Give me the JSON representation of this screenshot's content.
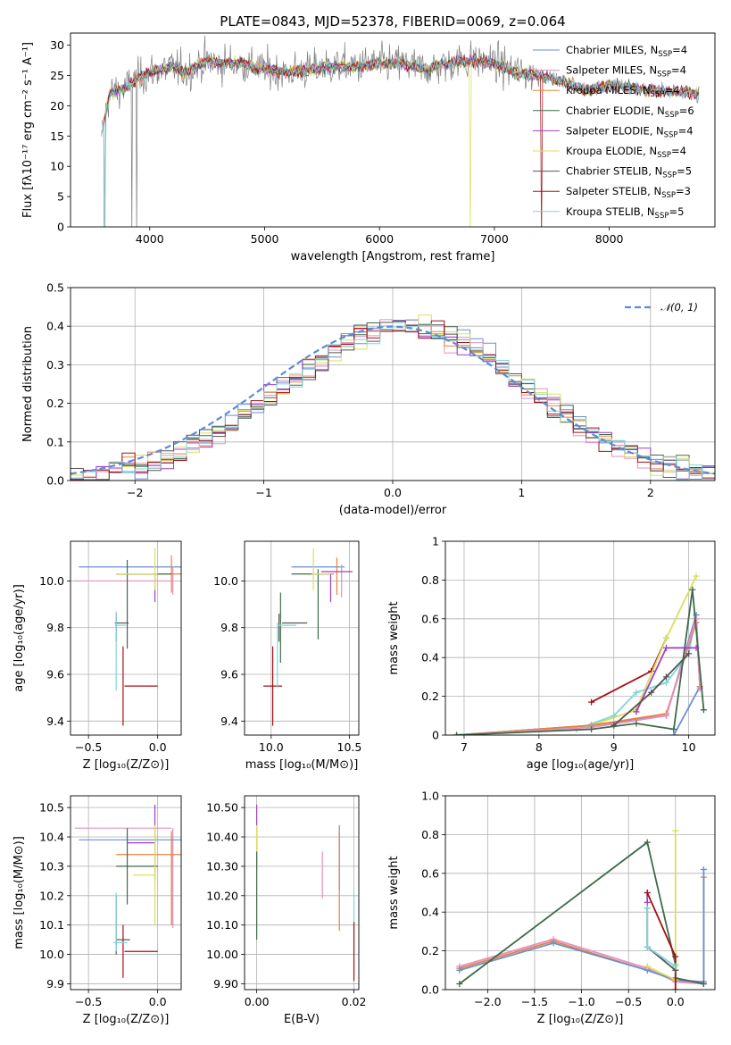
{
  "figure": {
    "title": "PLATE=0843, MJD=52378, FIBERID=0069, z=0.064"
  },
  "colors": {
    "Chabrier MILES": "#6a8fd6",
    "Salpeter MILES": "#e68fbf",
    "Kroupa MILES": "#e8823a",
    "Chabrier ELODIE": "#3d6b4a",
    "Salpeter ELODIE": "#a23cc9",
    "Kroupa ELODIE": "#d8e05a",
    "Chabrier STELIB": "#555555",
    "Salpeter STELIB": "#a50f15",
    "Kroupa STELIB": "#7fd6d6",
    "data": "#7f7f7f",
    "gaussian": "#5b8bd6"
  },
  "chart_data": [
    {
      "id": "spectrum",
      "type": "line",
      "title": "PLATE=0843, MJD=52378, FIBERID=0069, z=0.064",
      "xlabel": "wavelength [Angstrom, rest frame]",
      "ylabel": "Flux [fλ10⁻¹⁷ erg cm⁻² s⁻¹ A⁻¹]",
      "xlim": [
        3310,
        8920
      ],
      "ylim": [
        0,
        32
      ],
      "xticks": [
        4000,
        5000,
        6000,
        7000,
        8000
      ],
      "yticks": [
        0,
        5,
        10,
        15,
        20,
        25,
        30
      ],
      "legend_position": "top-right",
      "legend": [
        "Chabrier MILES, N_SSP=4",
        "Salpeter MILES, N_SSP=4",
        "Kroupa MILES, N_SSP=4",
        "Chabrier ELODIE, N_SSP=6",
        "Salpeter ELODIE, N_SSP=4",
        "Kroupa ELODIE, N_SSP=4",
        "Chabrier STELIB, N_SSP=5",
        "Salpeter STELIB, N_SSP=3",
        "Kroupa STELIB, N_SSP=5"
      ],
      "continuum": {
        "x": [
          3580,
          3650,
          3800,
          3900,
          4000,
          4100,
          4200,
          4300,
          4400,
          4500,
          4600,
          4800,
          5000,
          5200,
          5400,
          5600,
          5800,
          6000,
          6200,
          6400,
          6600,
          6800,
          7000,
          7200,
          7400,
          7600,
          7800,
          8000,
          8200,
          8400,
          8800
        ],
        "y": [
          15.5,
          22,
          23,
          24.5,
          25.5,
          26,
          26.5,
          25.5,
          26.5,
          27.5,
          27,
          27,
          26,
          25.5,
          26,
          26.5,
          26.5,
          27,
          27,
          26,
          27,
          27.5,
          27,
          25.5,
          25,
          24,
          22.5,
          23.5,
          23,
          22.5,
          22
        ]
      }
    },
    {
      "id": "residuals",
      "type": "line",
      "xlabel": "(data-model)/error",
      "ylabel": "Normed distribution",
      "xlim": [
        -2.5,
        2.5
      ],
      "ylim": [
        0,
        0.5
      ],
      "xticks": [
        -2,
        -1,
        0,
        1,
        2
      ],
      "yticks": [
        0.0,
        0.1,
        0.2,
        0.3,
        0.4,
        0.5
      ],
      "legend_position": "top-right",
      "legend": [
        "𝒩(0, 1)"
      ],
      "bin_width": 0.1
    },
    {
      "id": "age_vs_Z",
      "type": "scatter",
      "xlabel": "Z [log₁₀(Z/Z⊙)]",
      "ylabel": "age  [log₁₀(age/yr)]",
      "xlim": [
        -0.63,
        0.17
      ],
      "ylim": [
        9.34,
        10.17
      ],
      "xticks": [
        -0.5,
        0.0
      ],
      "yticks": [
        9.4,
        9.6,
        9.8,
        10.0
      ],
      "points": [
        {
          "model": "Chabrier MILES",
          "x": -0.2,
          "xerr": 0.37,
          "y": 10.06,
          "yerr": 0
        },
        {
          "model": "Salpeter MILES",
          "x": 0.11,
          "xerr": 0,
          "y": 10.0,
          "yerr": 0.06
        },
        {
          "model": "Salpeter MILES",
          "x": -0.25,
          "xerr": 0.35,
          "y": 10.0,
          "yerr": 0
        },
        {
          "model": "Kroupa MILES",
          "x": -0.05,
          "xerr": 0.25,
          "y": 10.03,
          "yerr": 0
        },
        {
          "model": "Kroupa MILES",
          "x": 0.1,
          "xerr": 0,
          "y": 10.03,
          "yerr": 0.08
        },
        {
          "model": "Chabrier ELODIE",
          "x": -0.22,
          "xerr": 0,
          "y": 9.9,
          "yerr": 0.19
        },
        {
          "model": "Chabrier ELODIE",
          "x": -0.1,
          "xerr": 0.2,
          "y": 10.03,
          "yerr": 0
        },
        {
          "model": "Salpeter ELODIE",
          "x": -0.02,
          "xerr": 0,
          "y": 9.97,
          "yerr": 0.06
        },
        {
          "model": "Kroupa ELODIE",
          "x": -0.02,
          "xerr": 0,
          "y": 10.05,
          "yerr": 0.09
        },
        {
          "model": "Kroupa ELODIE",
          "x": -0.15,
          "xerr": 0.15,
          "y": 10.03,
          "yerr": 0
        },
        {
          "model": "Chabrier STELIB",
          "x": -0.26,
          "xerr": 0.05,
          "y": 9.82,
          "yerr": 0
        },
        {
          "model": "Chabrier STELIB",
          "x": -0.3,
          "xerr": 0,
          "y": 9.8,
          "yerr": 0.06
        },
        {
          "model": "Salpeter STELIB",
          "x": -0.25,
          "xerr": 0,
          "y": 9.55,
          "yerr": 0.17
        },
        {
          "model": "Salpeter STELIB",
          "x": -0.12,
          "xerr": 0.12,
          "y": 9.55,
          "yerr": 0
        },
        {
          "model": "Kroupa STELIB",
          "x": -0.27,
          "xerr": 0.04,
          "y": 9.81,
          "yerr": 0
        },
        {
          "model": "Kroupa STELIB",
          "x": -0.3,
          "xerr": 0,
          "y": 9.7,
          "yerr": 0.17
        }
      ]
    },
    {
      "id": "age_vs_mass",
      "type": "scatter",
      "xlabel": "mass [log₁₀(M/M⊙)]",
      "ylabel": "",
      "xlim": [
        9.83,
        10.56
      ],
      "ylim": [
        9.34,
        10.17
      ],
      "xticks": [
        10.0,
        10.5
      ],
      "yticks": [
        9.4,
        9.6,
        9.8,
        10.0
      ],
      "points": [
        {
          "model": "Chabrier MILES",
          "x": 10.3,
          "xerr": 0.17,
          "y": 10.06,
          "yerr": 0
        },
        {
          "model": "Salpeter MILES",
          "x": 10.45,
          "xerr": 0,
          "y": 10.0,
          "yerr": 0.07
        },
        {
          "model": "Kroupa MILES",
          "x": 10.35,
          "xerr": 0.05,
          "y": 10.03,
          "yerr": 0
        },
        {
          "model": "Kroupa MILES",
          "x": 10.42,
          "xerr": 0,
          "y": 10.02,
          "yerr": 0.08
        },
        {
          "model": "Chabrier ELODIE",
          "x": 10.25,
          "xerr": 0.12,
          "y": 10.03,
          "yerr": 0
        },
        {
          "model": "Chabrier ELODIE",
          "x": 10.3,
          "xerr": 0,
          "y": 9.9,
          "yerr": 0.15
        },
        {
          "model": "Salpeter ELODIE",
          "x": 10.42,
          "xerr": 0.1,
          "y": 10.04,
          "yerr": 0
        },
        {
          "model": "Salpeter ELODIE",
          "x": 10.38,
          "xerr": 0,
          "y": 9.97,
          "yerr": 0.06
        },
        {
          "model": "Kroupa ELODIE",
          "x": 10.27,
          "xerr": 0,
          "y": 10.05,
          "yerr": 0.09
        },
        {
          "model": "Kroupa ELODIE",
          "x": 10.32,
          "xerr": 0.06,
          "y": 10.03,
          "yerr": 0
        },
        {
          "model": "Chabrier STELIB",
          "x": 10.15,
          "xerr": 0.08,
          "y": 9.82,
          "yerr": 0
        },
        {
          "model": "Chabrier STELIB",
          "x": 10.05,
          "xerr": 0,
          "y": 9.8,
          "yerr": 0.06
        },
        {
          "model": "Chabrier ELODIE",
          "x": 10.06,
          "xerr": 0,
          "y": 9.8,
          "yerr": 0.15
        },
        {
          "model": "Salpeter STELIB",
          "x": 10.01,
          "xerr": 0,
          "y": 9.55,
          "yerr": 0.17
        },
        {
          "model": "Salpeter STELIB",
          "x": 10.01,
          "xerr": 0.06,
          "y": 9.55,
          "yerr": 0
        },
        {
          "model": "Kroupa STELIB",
          "x": 10.1,
          "xerr": 0.06,
          "y": 9.81,
          "yerr": 0
        },
        {
          "model": "Kroupa STELIB",
          "x": 10.04,
          "xerr": 0,
          "y": 9.68,
          "yerr": 0.14
        }
      ]
    },
    {
      "id": "massweight_vs_age",
      "type": "line",
      "xlabel": "age  [log₁₀(age/yr)]",
      "ylabel": "mass weight",
      "xlim": [
        6.75,
        10.35
      ],
      "ylim": [
        0,
        1
      ],
      "xticks": [
        7,
        8,
        9,
        10
      ],
      "yticks": [
        0.0,
        0.2,
        0.4,
        0.6,
        0.8,
        1.0
      ],
      "series": [
        {
          "model": "Salpeter STELIB",
          "x": [
            8.7,
            9.5,
            9.7
          ],
          "y": [
            0.17,
            0.33,
            0.5
          ]
        },
        {
          "model": "Kroupa ELODIE",
          "x": [
            6.9,
            8.7,
            9.3,
            9.7,
            10.1
          ],
          "y": [
            0.0,
            0.05,
            0.13,
            0.5,
            0.82
          ]
        },
        {
          "model": "Kroupa STELIB",
          "x": [
            8.5,
            9.0,
            9.3,
            9.7,
            10.0,
            10.1
          ],
          "y": [
            0.03,
            0.1,
            0.22,
            0.27,
            0.42,
            0.62
          ]
        },
        {
          "model": "Chabrier MILES",
          "x": [
            6.9,
            8.7,
            9.7,
            10.1,
            10.15,
            9.8
          ],
          "y": [
            0.0,
            0.05,
            0.1,
            0.62,
            0.25,
            0.0
          ]
        },
        {
          "model": "Kroupa MILES",
          "x": [
            6.9,
            8.7,
            9.7,
            10.1,
            10.15
          ],
          "y": [
            0.0,
            0.05,
            0.11,
            0.58,
            0.25
          ]
        },
        {
          "model": "Salpeter MILES",
          "x": [
            6.9,
            8.7,
            9.7,
            10.1,
            10.15
          ],
          "y": [
            0.0,
            0.04,
            0.1,
            0.6,
            0.24
          ]
        },
        {
          "model": "Chabrier ELODIE",
          "x": [
            6.9,
            8.7,
            9.3,
            9.8,
            10.05,
            10.2
          ],
          "y": [
            0.0,
            0.03,
            0.06,
            0.03,
            0.75,
            0.13
          ]
        },
        {
          "model": "Salpeter ELODIE",
          "x": [
            9.3,
            9.7,
            10.1
          ],
          "y": [
            0.12,
            0.45,
            0.45
          ]
        },
        {
          "model": "Chabrier STELIB",
          "x": [
            9.0,
            9.5,
            9.7,
            10.0
          ],
          "y": [
            0.05,
            0.22,
            0.3,
            0.42
          ]
        }
      ]
    },
    {
      "id": "mass_vs_Z",
      "type": "scatter",
      "xlabel": "Z [log₁₀(Z/Z⊙)]",
      "ylabel": "mass [log₁₀(M/M⊙)]",
      "xlim": [
        -0.63,
        0.17
      ],
      "ylim": [
        9.88,
        10.54
      ],
      "xticks": [
        -0.5,
        0.0
      ],
      "yticks": [
        9.9,
        10.0,
        10.1,
        10.2,
        10.3,
        10.4,
        10.5
      ],
      "points": [
        {
          "model": "Salpeter MILES",
          "x": -0.25,
          "xerr": 0.35,
          "y": 10.43,
          "yerr": 0
        },
        {
          "model": "Salpeter MILES",
          "x": 0.11,
          "xerr": 0,
          "y": 10.26,
          "yerr": 0.17
        },
        {
          "model": "Chabrier MILES",
          "x": -0.2,
          "xerr": 0.37,
          "y": 10.39,
          "yerr": 0
        },
        {
          "model": "Chabrier MILES",
          "x": 0.1,
          "xerr": 0,
          "y": 10.25,
          "yerr": 0.15
        },
        {
          "model": "Kroupa MILES",
          "x": -0.05,
          "xerr": 0.25,
          "y": 10.34,
          "yerr": 0
        },
        {
          "model": "Kroupa MILES",
          "x": 0.1,
          "xerr": 0,
          "y": 10.26,
          "yerr": 0.16
        },
        {
          "model": "Chabrier ELODIE",
          "x": -0.22,
          "xerr": 0,
          "y": 10.3,
          "yerr": 0.13
        },
        {
          "model": "Chabrier ELODIE",
          "x": -0.15,
          "xerr": 0.15,
          "y": 10.3,
          "yerr": 0
        },
        {
          "model": "Salpeter ELODIE",
          "x": -0.02,
          "xerr": 0,
          "y": 10.38,
          "yerr": 0.13
        },
        {
          "model": "Salpeter ELODIE",
          "x": -0.12,
          "xerr": 0.1,
          "y": 10.38,
          "yerr": 0
        },
        {
          "model": "Kroupa ELODIE",
          "x": -0.02,
          "xerr": 0,
          "y": 10.27,
          "yerr": 0.17
        },
        {
          "model": "Kroupa ELODIE",
          "x": -0.1,
          "xerr": 0.08,
          "y": 10.27,
          "yerr": 0
        },
        {
          "model": "Chabrier STELIB",
          "x": -0.25,
          "xerr": 0.05,
          "y": 10.05,
          "yerr": 0
        },
        {
          "model": "Chabrier STELIB",
          "x": -0.3,
          "xerr": 0,
          "y": 10.1,
          "yerr": 0.1
        },
        {
          "model": "Salpeter STELIB",
          "x": -0.25,
          "xerr": 0,
          "y": 10.01,
          "yerr": 0.09
        },
        {
          "model": "Salpeter STELIB",
          "x": -0.12,
          "xerr": 0.12,
          "y": 10.01,
          "yerr": 0
        },
        {
          "model": "Kroupa STELIB",
          "x": -0.27,
          "xerr": 0.05,
          "y": 10.04,
          "yerr": 0
        },
        {
          "model": "Kroupa STELIB",
          "x": -0.3,
          "xerr": 0,
          "y": 10.11,
          "yerr": 0.1
        }
      ]
    },
    {
      "id": "mass_vs_EBV",
      "type": "scatter",
      "xlabel": "E(B-V)",
      "ylabel": "",
      "xlim": [
        -0.0025,
        0.021
      ],
      "ylim": [
        9.88,
        10.54
      ],
      "xticks": [
        0.0,
        0.02
      ],
      "yticks": [
        9.9,
        10.0,
        10.1,
        10.2,
        10.3,
        10.4,
        10.5
      ],
      "points": [
        {
          "model": "Salpeter ELODIE",
          "x": 0.0,
          "xerr": 0,
          "y": 10.4,
          "yerr": 0.11
        },
        {
          "model": "Kroupa ELODIE",
          "x": 0.0,
          "xerr": 0,
          "y": 10.27,
          "yerr": 0.17
        },
        {
          "model": "Chabrier ELODIE",
          "x": 0.0,
          "xerr": 0,
          "y": 10.2,
          "yerr": 0.15
        },
        {
          "model": "Salpeter MILES",
          "x": 0.0135,
          "xerr": 0,
          "y": 10.27,
          "yerr": 0.08
        },
        {
          "model": "Chabrier MILES",
          "x": 0.017,
          "xerr": 0,
          "y": 10.33,
          "yerr": 0.11
        },
        {
          "model": "Kroupa MILES",
          "x": 0.017,
          "xerr": 0,
          "y": 10.25,
          "yerr": 0.17
        },
        {
          "model": "Kroupa STELIB",
          "x": 0.02,
          "xerr": 0,
          "y": 10.11,
          "yerr": 0.1
        },
        {
          "model": "Salpeter STELIB",
          "x": 0.02,
          "xerr": 0,
          "y": 10.01,
          "yerr": 0.1
        }
      ]
    },
    {
      "id": "massweight_vs_Z",
      "type": "line",
      "xlabel": "Z [log₁₀(Z/Z⊙)]",
      "ylabel": "mass weight",
      "xlim": [
        -2.45,
        0.42
      ],
      "ylim": [
        0,
        1
      ],
      "xticks": [
        -2.0,
        -1.5,
        -1.0,
        -0.5,
        0.0
      ],
      "yticks": [
        0.0,
        0.2,
        0.4,
        0.6,
        0.8,
        1.0
      ],
      "series": [
        {
          "model": "Kroupa MILES",
          "x": [
            -2.3,
            -1.3,
            -0.3,
            0.0,
            0.3,
            0.3
          ],
          "y": [
            0.11,
            0.25,
            0.1,
            0.05,
            0.03,
            0.58
          ]
        },
        {
          "model": "Salpeter MILES",
          "x": [
            -2.3,
            -1.3,
            -0.3,
            0.0,
            0.3
          ],
          "y": [
            0.12,
            0.26,
            0.11,
            0.04,
            0.03
          ]
        },
        {
          "model": "Chabrier MILES",
          "x": [
            -2.3,
            -1.3,
            -0.3,
            0.0,
            0.3,
            0.3
          ],
          "y": [
            0.1,
            0.24,
            0.1,
            0.05,
            0.04,
            0.62
          ]
        },
        {
          "model": "Chabrier ELODIE",
          "x": [
            -2.3,
            -0.3,
            0.0,
            0.0,
            0.3
          ],
          "y": [
            0.03,
            0.76,
            0.13,
            0.06,
            0.03
          ]
        },
        {
          "model": "Kroupa ELODIE",
          "x": [
            -0.3,
            0.0,
            0.0,
            0.0
          ],
          "y": [
            0.12,
            0.05,
            0.13,
            0.82
          ]
        },
        {
          "model": "Salpeter ELODIE",
          "x": [
            -0.3,
            -0.3
          ],
          "y": [
            0.45,
            0.5
          ]
        },
        {
          "model": "Salpeter STELIB",
          "x": [
            -0.3,
            0.0,
            0.0
          ],
          "y": [
            0.5,
            0.17,
            0.0
          ]
        },
        {
          "model": "Chabrier STELIB",
          "x": [
            -0.3,
            -0.3,
            0.0
          ],
          "y": [
            0.42,
            0.22,
            0.1
          ]
        },
        {
          "model": "Kroupa STELIB",
          "x": [
            -0.3,
            -0.3,
            0.0
          ],
          "y": [
            0.42,
            0.22,
            0.12
          ]
        }
      ]
    }
  ]
}
